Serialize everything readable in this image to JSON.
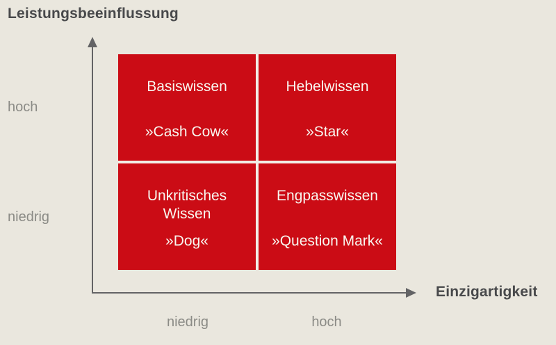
{
  "title": "Leistungsbeeinflussung",
  "colors": {
    "background": "#eae7de",
    "quadrant_red": "#cb0c15",
    "divider": "#f2efe7",
    "axis": "#636365",
    "title_text": "#48494b",
    "label_text": "#8b8b86",
    "quadrant_text": "#f8f6ef"
  },
  "y_axis": {
    "title": "Leistungsbeeinflussung",
    "high_label": "hoch",
    "low_label": "niedrig"
  },
  "x_axis": {
    "title": "Einzigartigkeit",
    "low_label": "niedrig",
    "high_label": "hoch"
  },
  "quadrants": [
    {
      "position": "top-left",
      "title": "Basiswissen",
      "subtitle": "»Cash Cow«"
    },
    {
      "position": "top-right",
      "title": "Hebelwissen",
      "subtitle": "»Star«"
    },
    {
      "position": "bottom-left",
      "title": "Unkritisches Wissen",
      "subtitle": "»Dog«"
    },
    {
      "position": "bottom-right",
      "title": "Engpasswissen",
      "subtitle": "»Question Mark«"
    }
  ]
}
